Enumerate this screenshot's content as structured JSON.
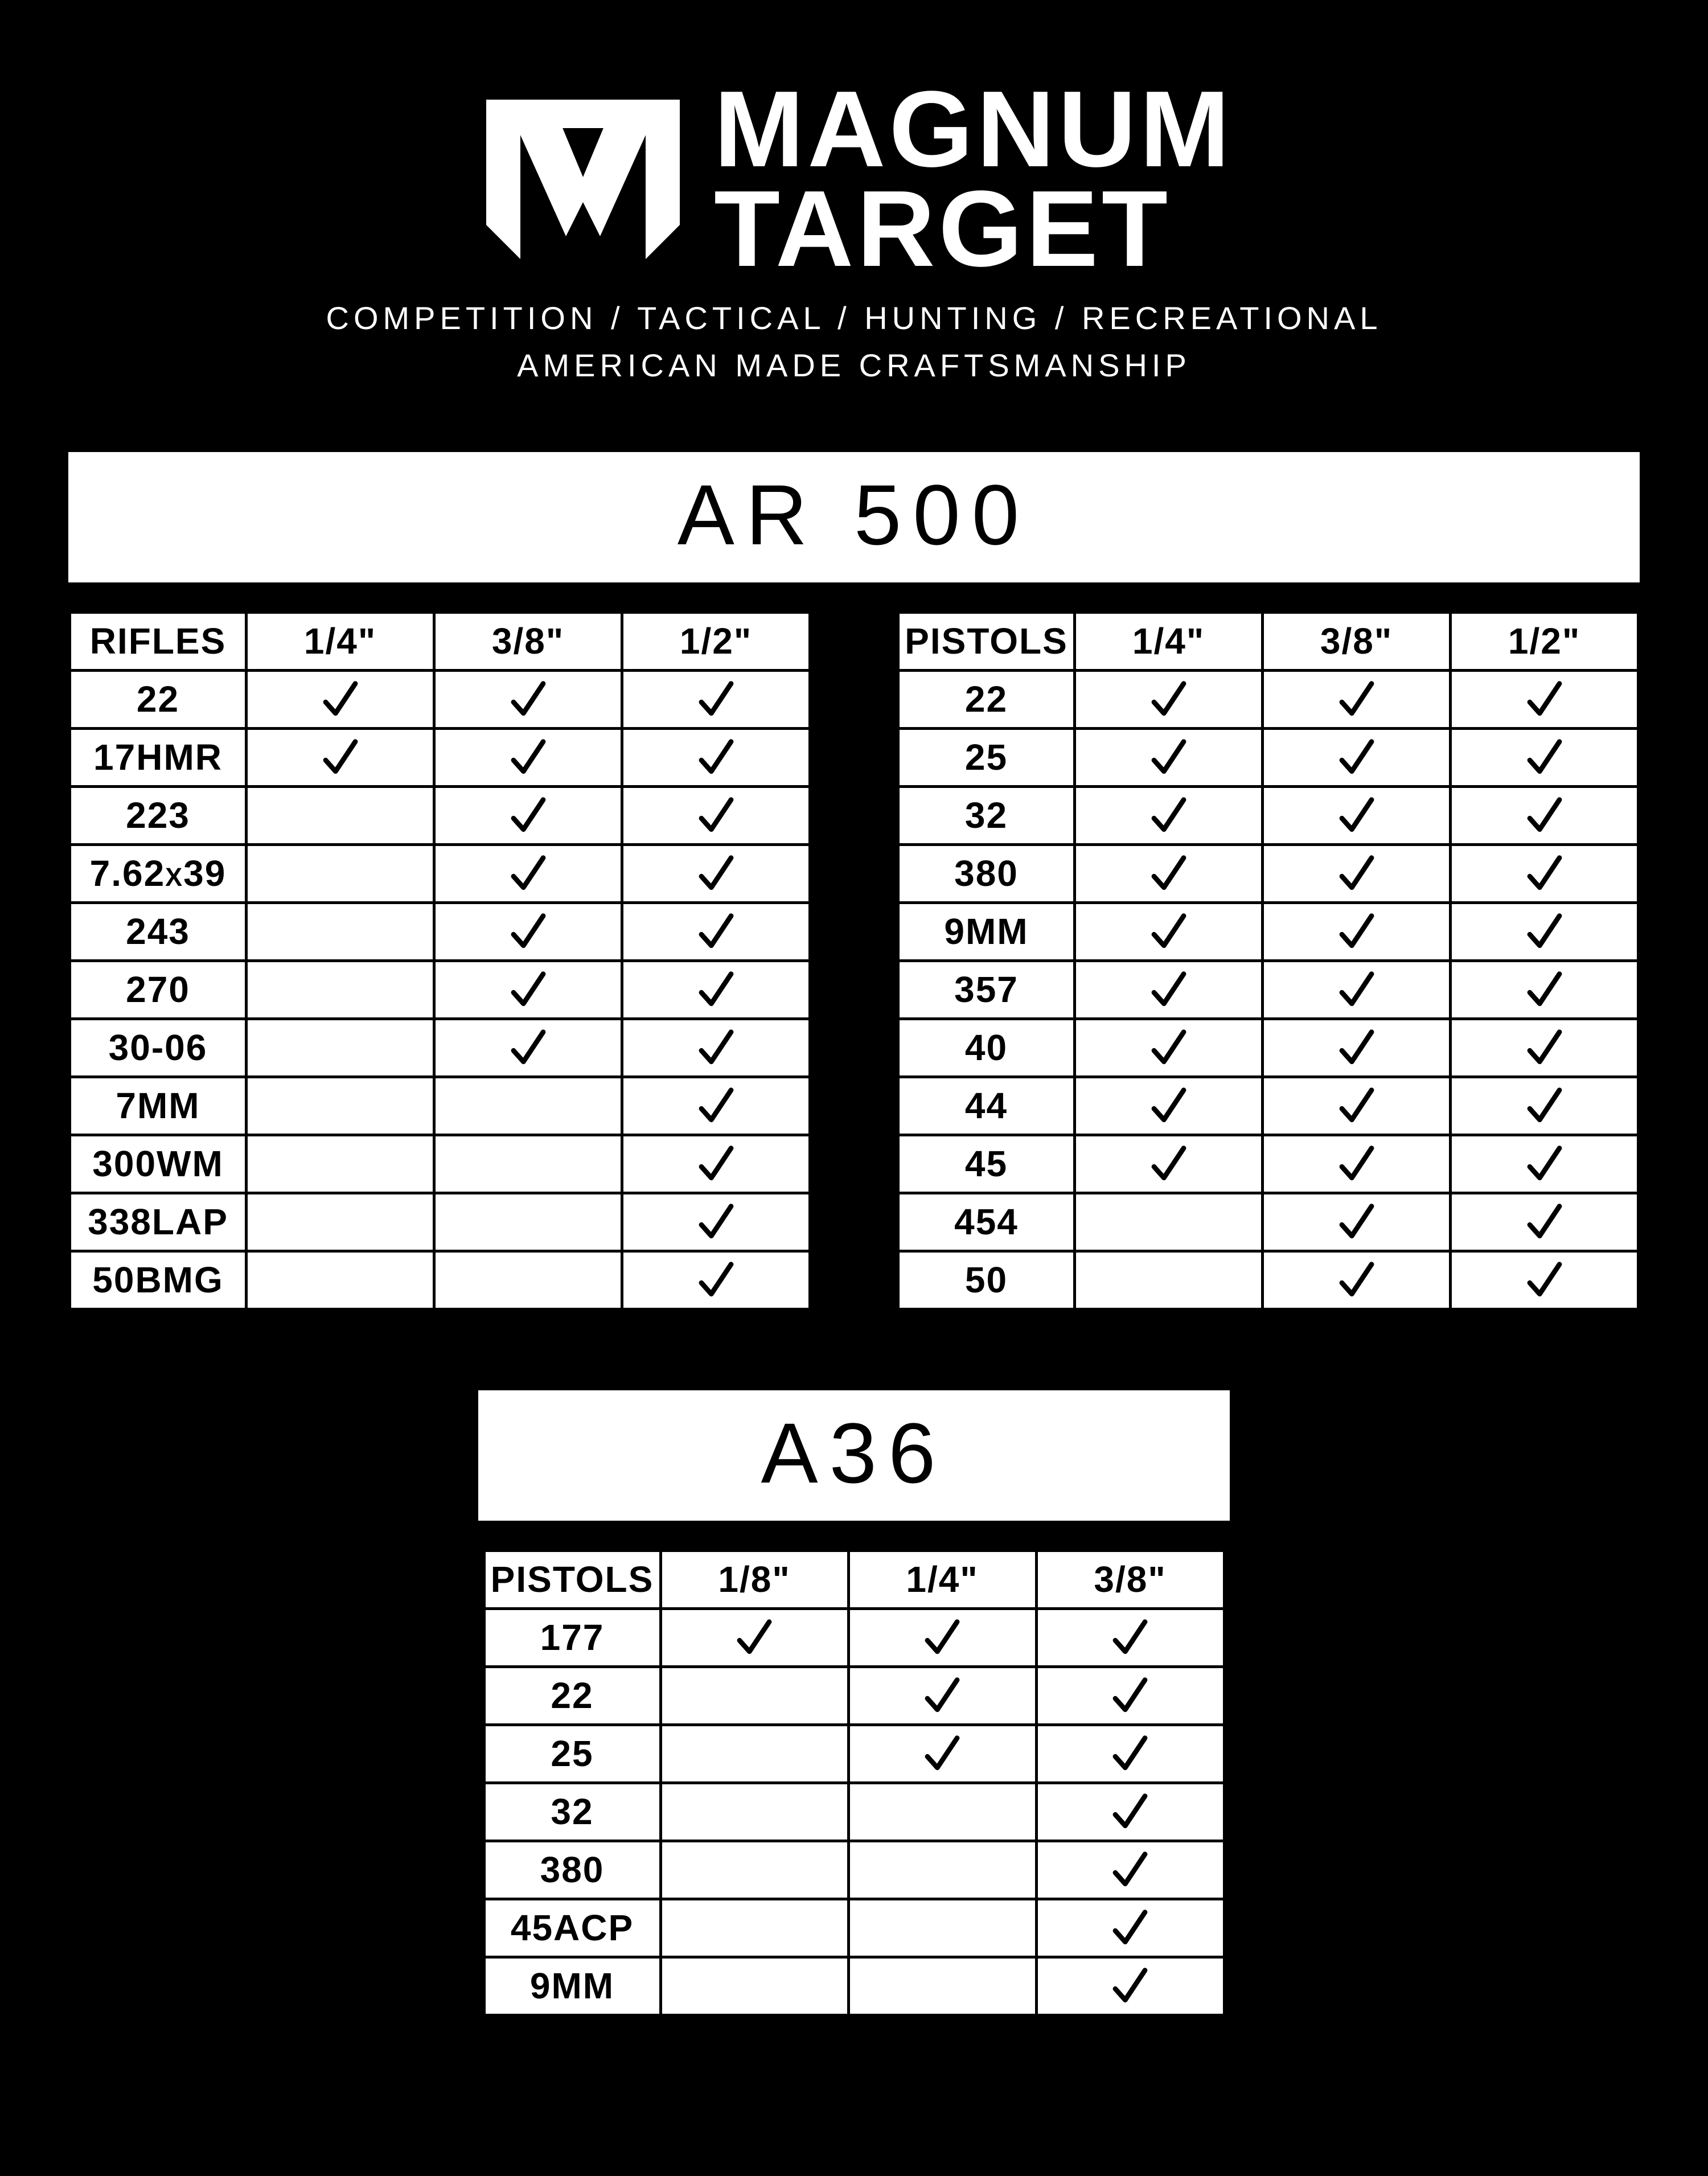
{
  "colors": {
    "background": "#000000",
    "panel": "#ffffff",
    "text": "#000000",
    "logo": "#ffffff",
    "border": "#000000",
    "check": "#000000"
  },
  "logo": {
    "word1": "MAGNUM",
    "word2": "TARGET",
    "tagline1": "COMPETITION / TACTICAL / HUNTING / RECREATIONAL",
    "tagline2": "AMERICAN MADE CRAFTSMANSHIP"
  },
  "sections": {
    "ar500": {
      "title": "AR 500",
      "rifles": {
        "header": [
          "RIFLES",
          "1/4\"",
          "3/8\"",
          "1/2\""
        ],
        "rows": [
          {
            "label": "22",
            "c1": true,
            "c2": true,
            "c3": true
          },
          {
            "label": "17HMR",
            "c1": true,
            "c2": true,
            "c3": true
          },
          {
            "label": "223",
            "c1": false,
            "c2": true,
            "c3": true
          },
          {
            "label": "7.62x39",
            "c1": false,
            "c2": true,
            "c3": true
          },
          {
            "label": "243",
            "c1": false,
            "c2": true,
            "c3": true
          },
          {
            "label": "270",
            "c1": false,
            "c2": true,
            "c3": true
          },
          {
            "label": "30-06",
            "c1": false,
            "c2": true,
            "c3": true
          },
          {
            "label": "7MM",
            "c1": false,
            "c2": false,
            "c3": true
          },
          {
            "label": "300WM",
            "c1": false,
            "c2": false,
            "c3": true
          },
          {
            "label": "338LAP",
            "c1": false,
            "c2": false,
            "c3": true
          },
          {
            "label": "50BMG",
            "c1": false,
            "c2": false,
            "c3": true
          }
        ]
      },
      "pistols": {
        "header": [
          "PISTOLS",
          "1/4\"",
          "3/8\"",
          "1/2\""
        ],
        "rows": [
          {
            "label": "22",
            "c1": true,
            "c2": true,
            "c3": true
          },
          {
            "label": "25",
            "c1": true,
            "c2": true,
            "c3": true
          },
          {
            "label": "32",
            "c1": true,
            "c2": true,
            "c3": true
          },
          {
            "label": "380",
            "c1": true,
            "c2": true,
            "c3": true
          },
          {
            "label": "9MM",
            "c1": true,
            "c2": true,
            "c3": true
          },
          {
            "label": "357",
            "c1": true,
            "c2": true,
            "c3": true
          },
          {
            "label": "40",
            "c1": true,
            "c2": true,
            "c3": true
          },
          {
            "label": "44",
            "c1": true,
            "c2": true,
            "c3": true
          },
          {
            "label": "45",
            "c1": true,
            "c2": true,
            "c3": true
          },
          {
            "label": "454",
            "c1": false,
            "c2": true,
            "c3": true
          },
          {
            "label": "50",
            "c1": false,
            "c2": true,
            "c3": true
          }
        ]
      }
    },
    "a36": {
      "title": "A36",
      "pistols": {
        "header": [
          "PISTOLS",
          "1/8\"",
          "1/4\"",
          "3/8\""
        ],
        "rows": [
          {
            "label": "177",
            "c1": true,
            "c2": true,
            "c3": true
          },
          {
            "label": "22",
            "c1": false,
            "c2": true,
            "c3": true
          },
          {
            "label": "25",
            "c1": false,
            "c2": true,
            "c3": true
          },
          {
            "label": "32",
            "c1": false,
            "c2": false,
            "c3": true
          },
          {
            "label": "380",
            "c1": false,
            "c2": false,
            "c3": true
          },
          {
            "label": "45ACP",
            "c1": false,
            "c2": false,
            "c3": true
          },
          {
            "label": "9MM",
            "c1": false,
            "c2": false,
            "c3": true
          }
        ]
      }
    }
  }
}
